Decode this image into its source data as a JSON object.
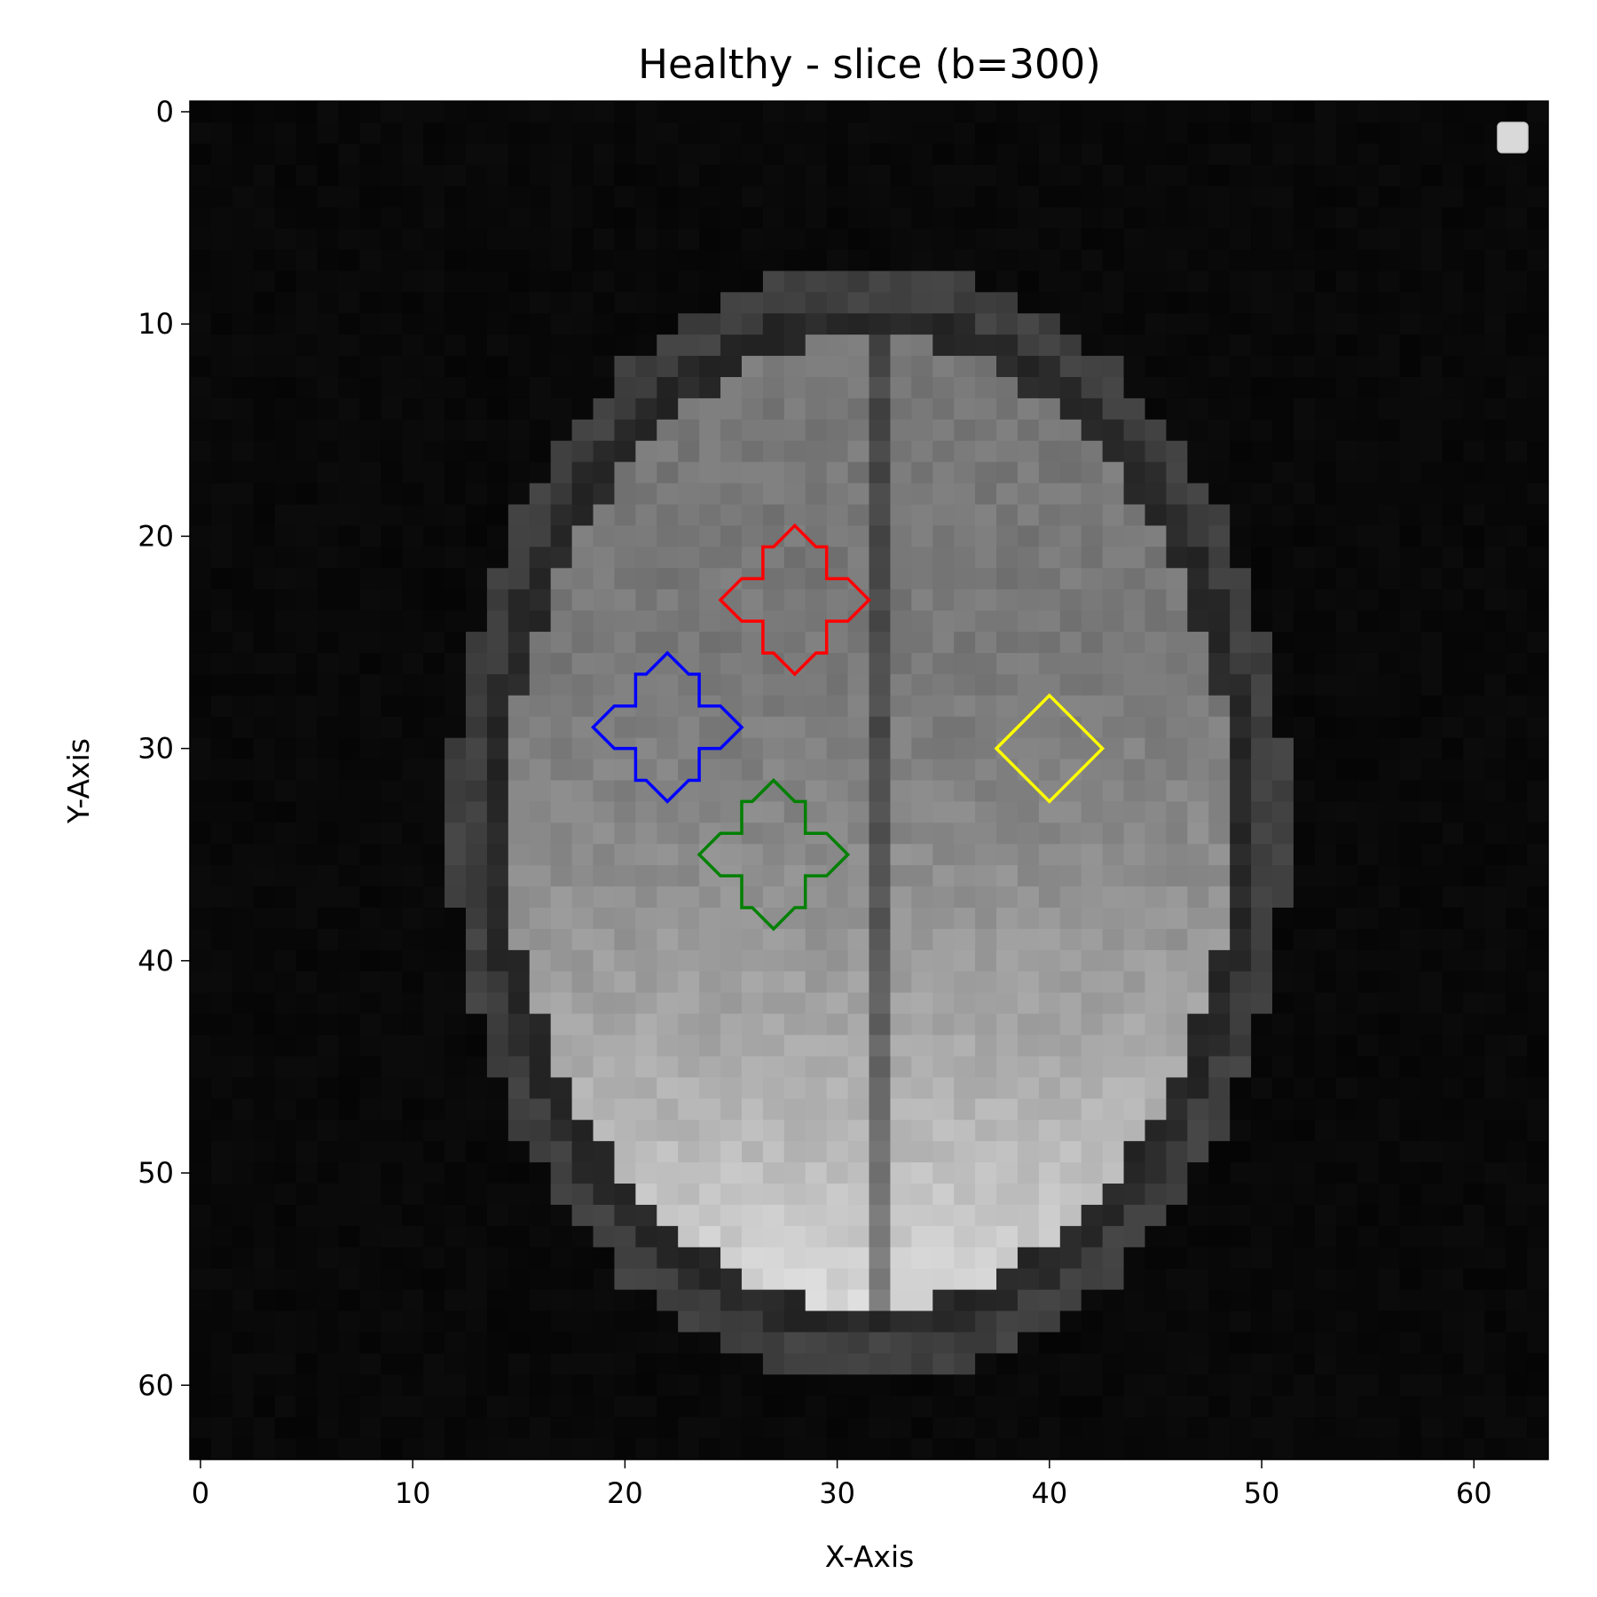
{
  "chart_data": {
    "type": "heatmap",
    "title": "Healthy - slice (b=300)",
    "xlabel": "X-Axis",
    "ylabel": "Y-Axis",
    "xlim": [
      -0.5,
      63.5
    ],
    "ylim": [
      63.5,
      -0.5
    ],
    "xticks": [
      0,
      10,
      20,
      30,
      40,
      50,
      60
    ],
    "yticks": [
      0,
      10,
      20,
      30,
      40,
      50,
      60
    ],
    "colormap": "gray",
    "grid": false,
    "legend": {
      "placement": "upper right",
      "entries": []
    },
    "image_description": "axial brain DWI slice, 64x64 grayscale",
    "rois": [
      {
        "color": "#ff0000",
        "shape": "8-point star",
        "center": [
          28,
          23
        ],
        "radius": 3.5
      },
      {
        "color": "#0000ff",
        "shape": "8-point star",
        "center": [
          22,
          29
        ],
        "radius": 3.5
      },
      {
        "color": "#008000",
        "shape": "8-point star",
        "center": [
          27,
          35
        ],
        "radius": 3.5
      },
      {
        "color": "#ffff00",
        "shape": "diamond",
        "center": [
          40,
          30
        ],
        "radius": 2.5
      }
    ]
  }
}
